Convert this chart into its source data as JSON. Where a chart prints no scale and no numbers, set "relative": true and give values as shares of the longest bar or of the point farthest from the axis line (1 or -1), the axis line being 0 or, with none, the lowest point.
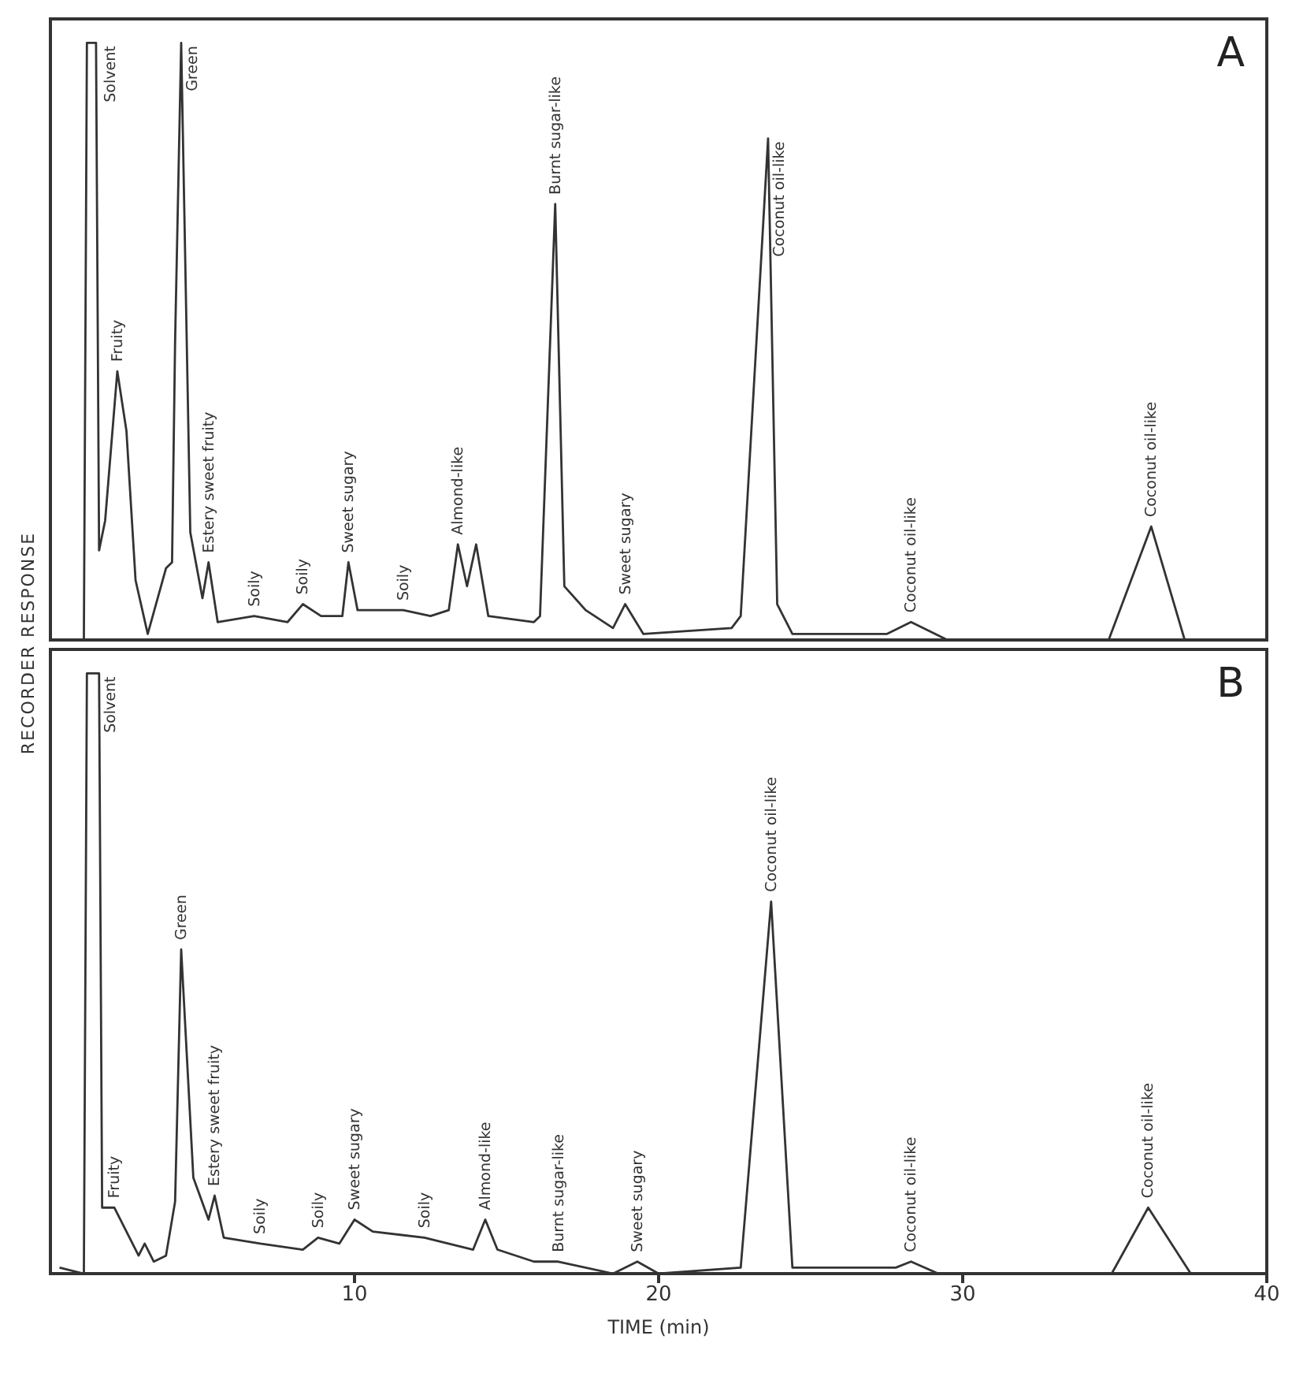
{
  "chart_data": [
    {
      "type": "line",
      "relative": true,
      "ylabel": "RECORDER RESPONSE",
      "xlim": [
        0,
        40
      ],
      "xticks": [
        10,
        20,
        30,
        40
      ],
      "tick_labels": false,
      "color": "#333333",
      "x": [
        0.8,
        1.1,
        1.2,
        1.5,
        1.6,
        1.8,
        2.2,
        2.5,
        2.8,
        3.2,
        3.8,
        4.0,
        4.1,
        4.3,
        4.6,
        5.0,
        5.2,
        5.5,
        6.7,
        7.8,
        8.3,
        8.9,
        9.6,
        9.8,
        10.1,
        11.6,
        12.5,
        13.1,
        13.4,
        13.7,
        14.0,
        14.4,
        15.9,
        16.1,
        16.6,
        16.9,
        17.6,
        18.5,
        18.9,
        19.5,
        22.4,
        22.7,
        23.6,
        23.9,
        24.4,
        27.5,
        28.3,
        29.5,
        34.8,
        36.2,
        37.3,
        38.0
      ],
      "values": [
        0.0,
        0.0,
        1,
        1,
        0.15,
        0.2,
        0.45,
        0.35,
        0.1,
        0.01,
        0.12,
        0.13,
        0.5,
        1,
        0.18,
        0.07,
        0.13,
        0.03,
        0.04,
        0.03,
        0.06,
        0.04,
        0.04,
        0.13,
        0.05,
        0.05,
        0.04,
        0.05,
        0.16,
        0.09,
        0.16,
        0.04,
        0.03,
        0.04,
        0.73,
        0.09,
        0.05,
        0.02,
        0.06,
        0.01,
        0.02,
        0.04,
        0.84,
        0.06,
        0.01,
        0.01,
        0.03,
        0.0,
        0.0,
        0.19,
        0.0,
        0.0
      ],
      "annotations": [
        "A",
        {
          "text": "Solvent",
          "x": 1.6,
          "y": 1
        },
        {
          "text": "Fruity",
          "x": 2.2,
          "y": 0.45
        },
        {
          "text": "Green",
          "x": 4.3,
          "y": 1
        },
        {
          "text": "Estery sweet fruity",
          "x": 5.2,
          "y": 0.13
        },
        {
          "text": "Soily",
          "x": 6.7,
          "y": 0.04
        },
        {
          "text": "Soily",
          "x": 8.3,
          "y": 0.06
        },
        {
          "text": "Sweet sugary",
          "x": 9.8,
          "y": 0.13
        },
        {
          "text": "Soily",
          "x": 11.6,
          "y": 0.05
        },
        {
          "text": "Almond-like",
          "x": 13.4,
          "y": 0.16
        },
        {
          "text": "Burnt sugar-like",
          "x": 16.6,
          "y": 0.73
        },
        {
          "text": "Sweet sugary",
          "x": 18.9,
          "y": 0.06
        },
        {
          "text": "Coconut oil-like",
          "x": 23.6,
          "y": 0.84
        },
        {
          "text": "Coconut oil-like",
          "x": 28.3,
          "y": 0.03
        },
        {
          "text": "Coconut oil-like",
          "x": 36.2,
          "y": 0.19
        }
      ]
    },
    {
      "type": "line",
      "relative": true,
      "xlabel": "TIME (min)",
      "xlim": [
        0,
        40
      ],
      "xticks": [
        10,
        20,
        30,
        40
      ],
      "tick_labels": "x",
      "color": "#333333",
      "x": [
        0.3,
        1.1,
        1.2,
        1.6,
        1.7,
        2.1,
        2.9,
        3.1,
        3.4,
        3.8,
        4.1,
        4.3,
        4.7,
        5.2,
        5.4,
        5.7,
        6.9,
        8.3,
        8.8,
        9.5,
        10.0,
        10.6,
        12.3,
        13.9,
        14.3,
        14.7,
        15.9,
        16.7,
        18.5,
        19.3,
        20.0,
        22.7,
        23.7,
        24.4,
        27.8,
        28.3,
        29.2,
        34.9,
        36.1,
        37.5,
        39.0
      ],
      "values": [
        0.01,
        0.0,
        1,
        1,
        0.11,
        0.11,
        0.03,
        0.05,
        0.02,
        0.03,
        0.12,
        0.54,
        0.16,
        0.09,
        0.13,
        0.06,
        0.05,
        0.04,
        0.06,
        0.05,
        0.09,
        0.07,
        0.06,
        0.04,
        0.09,
        0.04,
        0.02,
        0.02,
        0.0,
        0.02,
        0.0,
        0.01,
        0.62,
        0.01,
        0.01,
        0.02,
        0.0,
        0.0,
        0.11,
        0.0,
        0.0
      ],
      "annotations": [
        "B",
        {
          "text": "Solvent",
          "x": 1.6,
          "y": 1
        },
        {
          "text": "Fruity",
          "x": 2.1,
          "y": 0.11
        },
        {
          "text": "Green",
          "x": 4.3,
          "y": 0.54
        },
        {
          "text": "Estery sweet fruity",
          "x": 5.4,
          "y": 0.13
        },
        {
          "text": "Soily",
          "x": 6.9,
          "y": 0.05
        },
        {
          "text": "Soily",
          "x": 8.8,
          "y": 0.06
        },
        {
          "text": "Sweet sugary",
          "x": 10.0,
          "y": 0.09
        },
        {
          "text": "Soily",
          "x": 12.3,
          "y": 0.06
        },
        {
          "text": "Almond-like",
          "x": 14.3,
          "y": 0.09
        },
        {
          "text": "Burnt sugar-like",
          "x": 16.7,
          "y": 0.02
        },
        {
          "text": "Sweet sugary",
          "x": 19.3,
          "y": 0.02
        },
        {
          "text": "Coconut oil-like",
          "x": 23.7,
          "y": 0.62
        },
        {
          "text": "Coconut oil-like",
          "x": 28.3,
          "y": 0.02
        },
        {
          "text": "Coconut oil-like",
          "x": 36.1,
          "y": 0.11
        }
      ]
    }
  ]
}
